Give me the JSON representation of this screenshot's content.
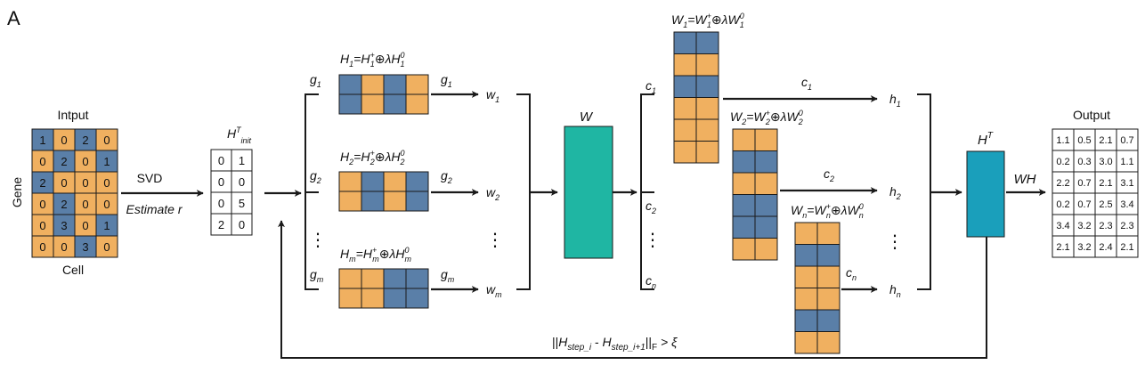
{
  "panel_label": "A",
  "colors": {
    "blue": "#5a7fa8",
    "orange": "#f0b060",
    "teal_w": "#1fb6a3",
    "teal_h": "#1a9fbb",
    "line": "#1a1a1a"
  },
  "input": {
    "title": "Intput",
    "row_axis": "Gene",
    "col_axis": "Cell",
    "cells": [
      [
        "1",
        "0",
        "2",
        "0"
      ],
      [
        "0",
        "2",
        "0",
        "1"
      ],
      [
        "2",
        "0",
        "0",
        "0"
      ],
      [
        "0",
        "2",
        "0",
        "0"
      ],
      [
        "0",
        "3",
        "0",
        "1"
      ],
      [
        "0",
        "0",
        "3",
        "0"
      ]
    ],
    "colors": [
      [
        "blue",
        "orange",
        "blue",
        "orange"
      ],
      [
        "orange",
        "blue",
        "orange",
        "blue"
      ],
      [
        "blue",
        "orange",
        "orange",
        "orange"
      ],
      [
        "orange",
        "blue",
        "orange",
        "orange"
      ],
      [
        "orange",
        "blue",
        "orange",
        "blue"
      ],
      [
        "orange",
        "orange",
        "blue",
        "orange"
      ]
    ]
  },
  "svd": {
    "label": "SVD",
    "sublabel": "Estimate r"
  },
  "h_init": {
    "sym": "H",
    "sup": "T",
    "sub": "init",
    "cells": [
      [
        "0",
        "1"
      ],
      [
        "0",
        "0"
      ],
      [
        "0",
        "5"
      ],
      [
        "2",
        "0"
      ]
    ]
  },
  "h_rows": [
    {
      "g": "g",
      "g_sub": "1",
      "w": "w",
      "w_sub": "1",
      "H": "H",
      "H_sub": "1",
      "sup_plus": "+",
      "lam_sup": "0",
      "oplus": "⊕λ",
      "eq": "=",
      "colors": [
        "blue",
        "orange",
        "blue",
        "orange"
      ]
    },
    {
      "g": "g",
      "g_sub": "2",
      "w": "w",
      "w_sub": "2",
      "H": "H",
      "H_sub": "2",
      "sup_plus": "+",
      "lam_sup": "0",
      "oplus": "⊕λ",
      "eq": "=",
      "colors": [
        "orange",
        "blue",
        "orange",
        "blue"
      ]
    },
    {
      "g": "g",
      "g_sub": "m",
      "w": "w",
      "w_sub": "m",
      "H": "H",
      "H_sub": "m",
      "sup_plus": "+",
      "lam_sup": "0",
      "oplus": "⊕λ",
      "eq": "=",
      "colors": [
        "orange",
        "orange",
        "blue",
        "blue"
      ]
    }
  ],
  "w_block": {
    "label": "W"
  },
  "c_labels": [
    {
      "c": "c",
      "sub": "1"
    },
    {
      "c": "c",
      "sub": "2"
    },
    {
      "c": "c",
      "sub": "n"
    }
  ],
  "w_cols": [
    {
      "W": "W",
      "sub": "1",
      "sup_plus": "+",
      "lam_sup": "0",
      "oplus": "⊕λ",
      "eq": "=",
      "colors": [
        "blue",
        "orange",
        "blue",
        "orange",
        "orange",
        "orange"
      ]
    },
    {
      "W": "W",
      "sub": "2",
      "sup_plus": "+",
      "lam_sup": "0",
      "oplus": "⊕λ",
      "eq": "=",
      "colors": [
        "orange",
        "blue",
        "orange",
        "blue",
        "blue",
        "orange"
      ]
    },
    {
      "W": "W",
      "sub": "n",
      "sup_plus": "+",
      "lam_sup": "0",
      "oplus": "⊕λ",
      "eq": "=",
      "colors": [
        "orange",
        "blue",
        "orange",
        "orange",
        "blue",
        "orange"
      ]
    }
  ],
  "h_outputs": [
    {
      "h": "h",
      "sub": "1"
    },
    {
      "h": "h",
      "sub": "2"
    },
    {
      "h": "h",
      "sub": "n"
    }
  ],
  "ht_block": {
    "sym": "H",
    "sup": "T"
  },
  "wh_label": "WH",
  "output": {
    "title": "Output",
    "cells": [
      [
        "1.1",
        "0.5",
        "2.1",
        "0.7"
      ],
      [
        "0.2",
        "0.3",
        "3.0",
        "1.1"
      ],
      [
        "2.2",
        "0.7",
        "2.1",
        "3.1"
      ],
      [
        "0.2",
        "0.7",
        "2.5",
        "3.4"
      ],
      [
        "3.4",
        "3.2",
        "2.3",
        "2.3"
      ],
      [
        "2.1",
        "3.2",
        "2.4",
        "2.1"
      ]
    ]
  },
  "convergence": {
    "norm_open": "||",
    "H1": "H",
    "sub1": "step_i",
    "minus": " - ",
    "H2": "H",
    "sub2": "step_i+1",
    "norm_close": "||",
    "sub_F": "F",
    "gt": " > ξ"
  },
  "dots": "⋮"
}
